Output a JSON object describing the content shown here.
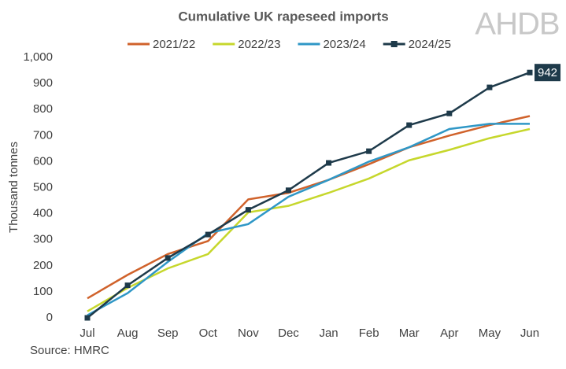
{
  "chart_data": {
    "type": "line",
    "title": "Cumulative UK rapeseed imports",
    "logo": "AHDB",
    "source": "Source: HMRC",
    "y_label": "Thousand tonnes",
    "categories": [
      "Jul",
      "Aug",
      "Sep",
      "Oct",
      "Nov",
      "Dec",
      "Jan",
      "Feb",
      "Mar",
      "Apr",
      "May",
      "Jun"
    ],
    "series": [
      {
        "name": "2021/22",
        "color": "#d0622b",
        "values": [
          75,
          165,
          245,
          295,
          455,
          480,
          530,
          590,
          655,
          700,
          740,
          775
        ]
      },
      {
        "name": "2022/23",
        "color": "#c6d72c",
        "values": [
          25,
          115,
          190,
          245,
          405,
          430,
          480,
          535,
          605,
          645,
          690,
          725
        ]
      },
      {
        "name": "2023/24",
        "color": "#2f97c6",
        "values": [
          10,
          95,
          215,
          325,
          360,
          465,
          530,
          600,
          655,
          725,
          745,
          745
        ]
      },
      {
        "name": "2024/25",
        "color": "#1e3a4a",
        "marker": "square",
        "label_last": true,
        "values": [
          0,
          125,
          230,
          320,
          415,
          490,
          595,
          640,
          740,
          785,
          885,
          942
        ]
      }
    ],
    "ylim": [
      0,
      1000
    ],
    "yticks": [
      0,
      100,
      200,
      300,
      400,
      500,
      600,
      700,
      800,
      900,
      {
        "value": 1000,
        "label": "1,000"
      }
    ],
    "grid": false,
    "legend": "top"
  }
}
